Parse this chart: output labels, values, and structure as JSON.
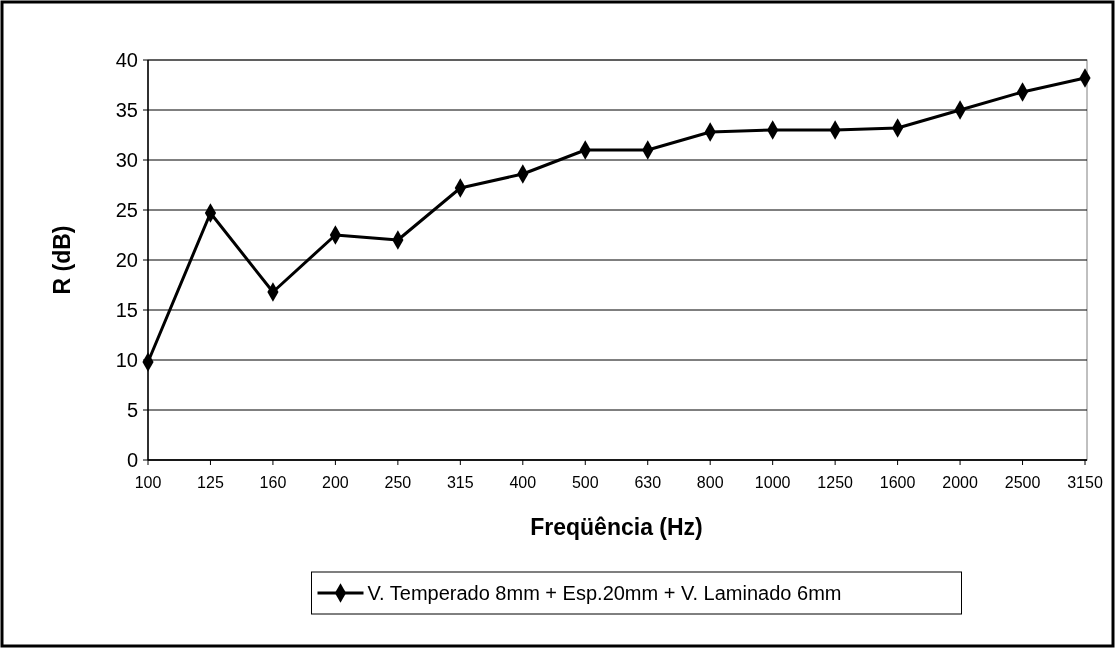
{
  "chart_data": {
    "type": "line",
    "xlabel": "Freqüência (Hz)",
    "ylabel": "R (dB)",
    "categories": [
      "100",
      "125",
      "160",
      "200",
      "250",
      "315",
      "400",
      "500",
      "630",
      "800",
      "1000",
      "1250",
      "1600",
      "2000",
      "2500",
      "3150"
    ],
    "series": [
      {
        "name": "V. Temperado 8mm + Esp.20mm + V. Laminado 6mm",
        "color": "#000000",
        "values": [
          9.8,
          24.7,
          16.8,
          22.5,
          22.0,
          27.2,
          28.6,
          31.0,
          31.0,
          32.8,
          33.0,
          33.0,
          33.2,
          35.0,
          36.8,
          38.2
        ]
      }
    ],
    "ylim": [
      0,
      40
    ],
    "yticks": [
      0,
      5,
      10,
      15,
      20,
      25,
      30,
      35,
      40
    ],
    "grid": "y",
    "legend": "bottom",
    "marker": "diamond",
    "line_style": "solid"
  }
}
